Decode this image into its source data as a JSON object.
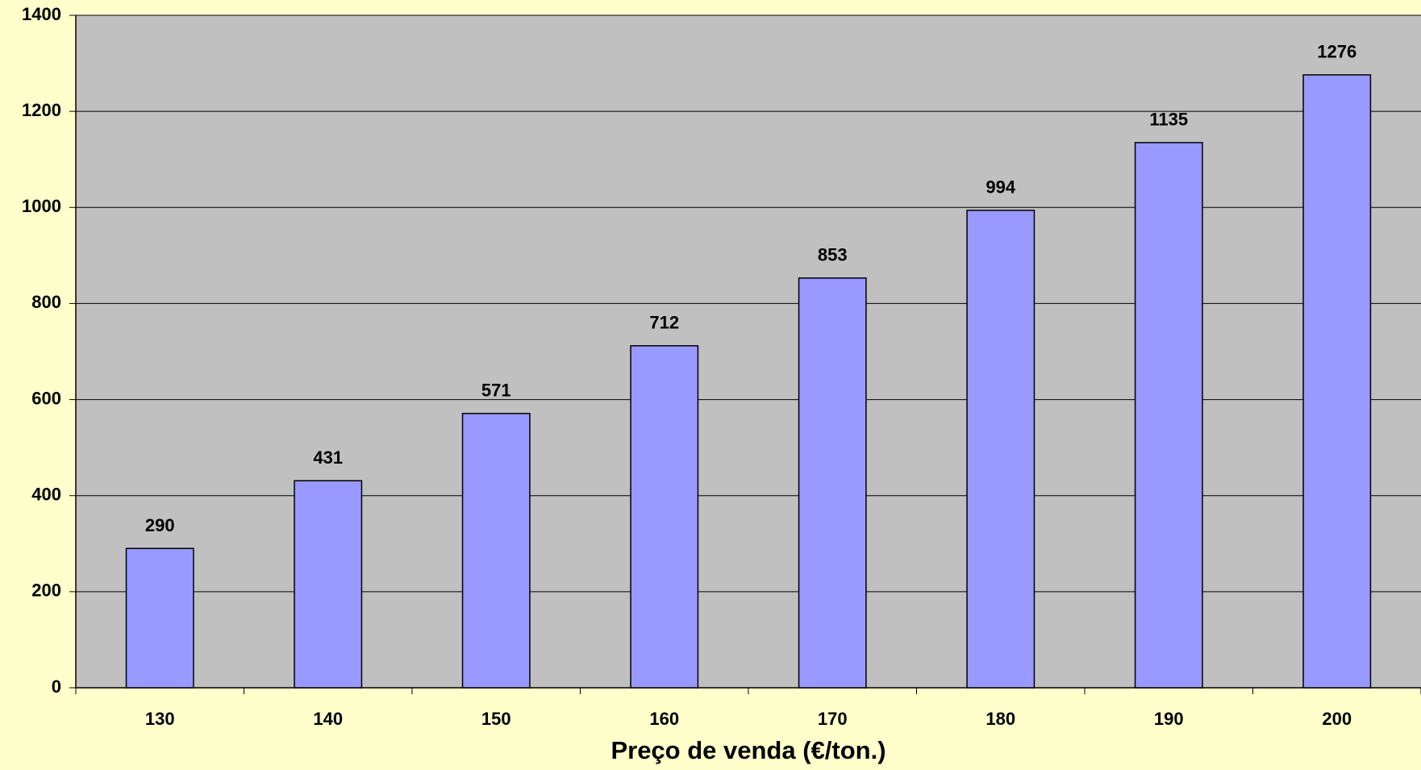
{
  "chart_data": {
    "type": "bar",
    "x_label": "Preço de venda (€/ton.)",
    "categories": [
      "130",
      "140",
      "150",
      "160",
      "170",
      "180",
      "190",
      "200"
    ],
    "values": [
      290,
      431,
      571,
      712,
      853,
      994,
      1135,
      1276
    ],
    "color": "#9999ff",
    "ylim": [
      0,
      1400
    ],
    "yticks": [
      0,
      200,
      400,
      600,
      800,
      1000,
      1200,
      1400
    ],
    "grid": true,
    "data_labels": true
  }
}
